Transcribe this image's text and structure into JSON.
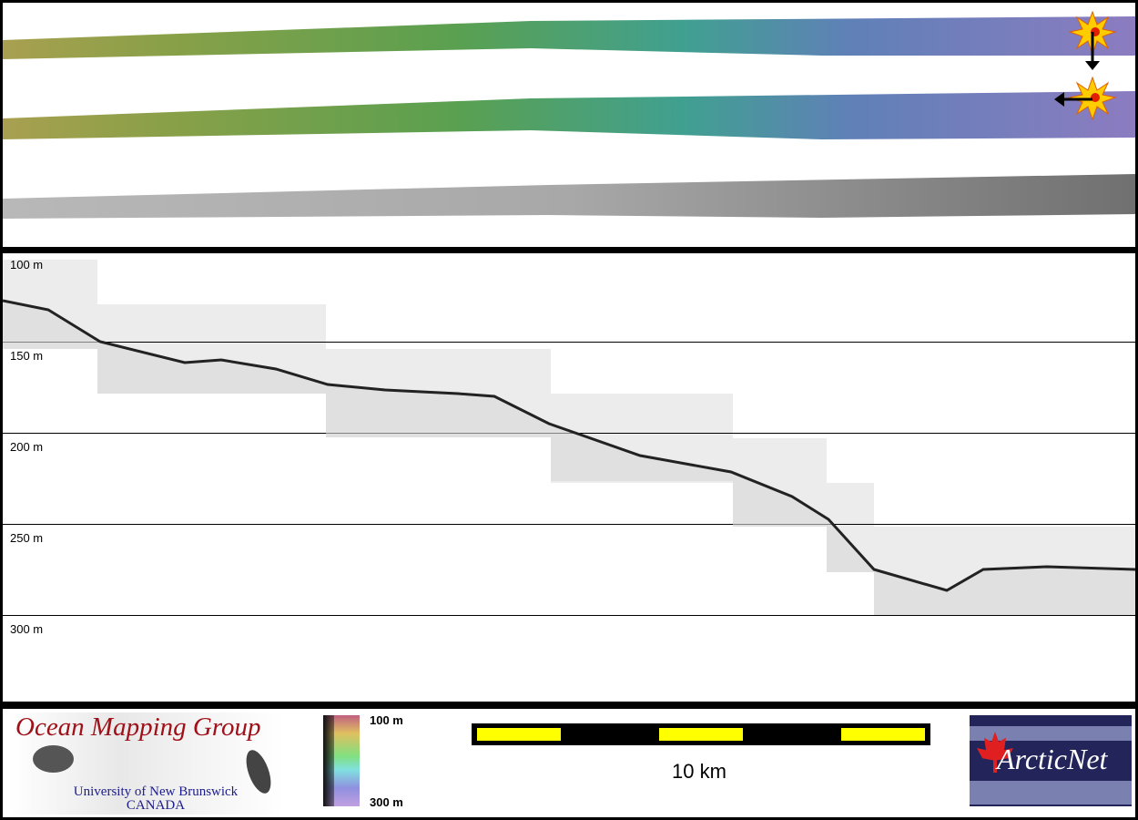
{
  "profile": {
    "depth_labels": [
      "100 m",
      "150 m",
      "200 m",
      "250 m",
      "300 m"
    ]
  },
  "legend": {
    "colorbar_top": "100 m",
    "colorbar_bottom": "300 m",
    "colors": [
      "#c06080",
      "#e0c060",
      "#80e080",
      "#80e0e0",
      "#9090e0",
      "#c0a0e0"
    ]
  },
  "scale_bar": {
    "label": "10 km",
    "colors": [
      "#ffff00",
      "#000000"
    ]
  },
  "logos": {
    "omg_title": "Ocean Mapping Group",
    "omg_sub1": "University of New Brunswick",
    "omg_sub2": "CANADA",
    "arcticnet": "ArcticNet"
  }
}
